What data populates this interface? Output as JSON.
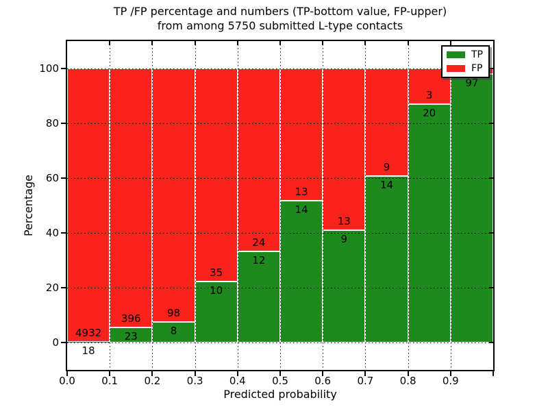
{
  "title": {
    "line1": "TP /FP percentage and numbers (TP-bottom value, FP-upper)",
    "line2": "from among 5750 submitted L-type contacts"
  },
  "axes": {
    "xlabel": "Predicted probability",
    "ylabel": "Percentage"
  },
  "legend": {
    "position": "upper right",
    "items": [
      {
        "label": "TP",
        "color": "#1e8a1e"
      },
      {
        "label": "FP",
        "color": "#fa231b"
      }
    ]
  },
  "chart_data": {
    "type": "bar",
    "stacked": true,
    "title": "TP /FP percentage and numbers (TP-bottom value, FP-upper) from among 5750 submitted L-type contacts",
    "xlabel": "Predicted probability",
    "ylabel": "Percentage",
    "xlim": [
      0.0,
      1.0
    ],
    "ylim": [
      -10,
      110
    ],
    "x_tick_labels": [
      "0.0",
      "0.1",
      "0.2",
      "0.3",
      "0.4",
      "0.5",
      "0.6",
      "0.7",
      "0.8",
      "0.9"
    ],
    "y_tick_values": [
      0,
      20,
      40,
      60,
      80,
      100
    ],
    "grid": "dotted",
    "legend_position": "upper right",
    "total_submitted": 5750,
    "series_colors": {
      "TP": "#1e8a1e",
      "FP": "#fa231b"
    },
    "bins": [
      {
        "x_range": [
          0.0,
          0.1
        ],
        "tp_count_label": "18",
        "fp_count_label": "4932",
        "tp_pct": 0.36,
        "fp_pct": 99.64
      },
      {
        "x_range": [
          0.1,
          0.2
        ],
        "tp_count_label": "23",
        "fp_count_label": "396",
        "tp_pct": 5.49,
        "fp_pct": 94.51
      },
      {
        "x_range": [
          0.2,
          0.3
        ],
        "tp_count_label": "8",
        "fp_count_label": "98",
        "tp_pct": 7.55,
        "fp_pct": 92.45
      },
      {
        "x_range": [
          0.3,
          0.4
        ],
        "tp_count_label": "10",
        "fp_count_label": "35",
        "tp_pct": 22.22,
        "fp_pct": 77.78
      },
      {
        "x_range": [
          0.4,
          0.5
        ],
        "tp_count_label": "12",
        "fp_count_label": "24",
        "tp_pct": 33.33,
        "fp_pct": 66.67
      },
      {
        "x_range": [
          0.5,
          0.6
        ],
        "tp_count_label": "14",
        "fp_count_label": "13",
        "tp_pct": 51.85,
        "fp_pct": 48.15
      },
      {
        "x_range": [
          0.6,
          0.7
        ],
        "tp_count_label": "9",
        "fp_count_label": "13",
        "tp_pct": 40.91,
        "fp_pct": 59.09
      },
      {
        "x_range": [
          0.7,
          0.8
        ],
        "tp_count_label": "14",
        "fp_count_label": "9",
        "tp_pct": 60.87,
        "fp_pct": 39.13
      },
      {
        "x_range": [
          0.8,
          0.9
        ],
        "tp_count_label": "20",
        "fp_count_label": "3",
        "tp_pct": 86.96,
        "fp_pct": 13.04
      },
      {
        "x_range": [
          0.9,
          1.0
        ],
        "tp_count_label": "97",
        "fp_count_label": null,
        "tp_pct": 97.98,
        "fp_pct": 2.02
      }
    ]
  }
}
